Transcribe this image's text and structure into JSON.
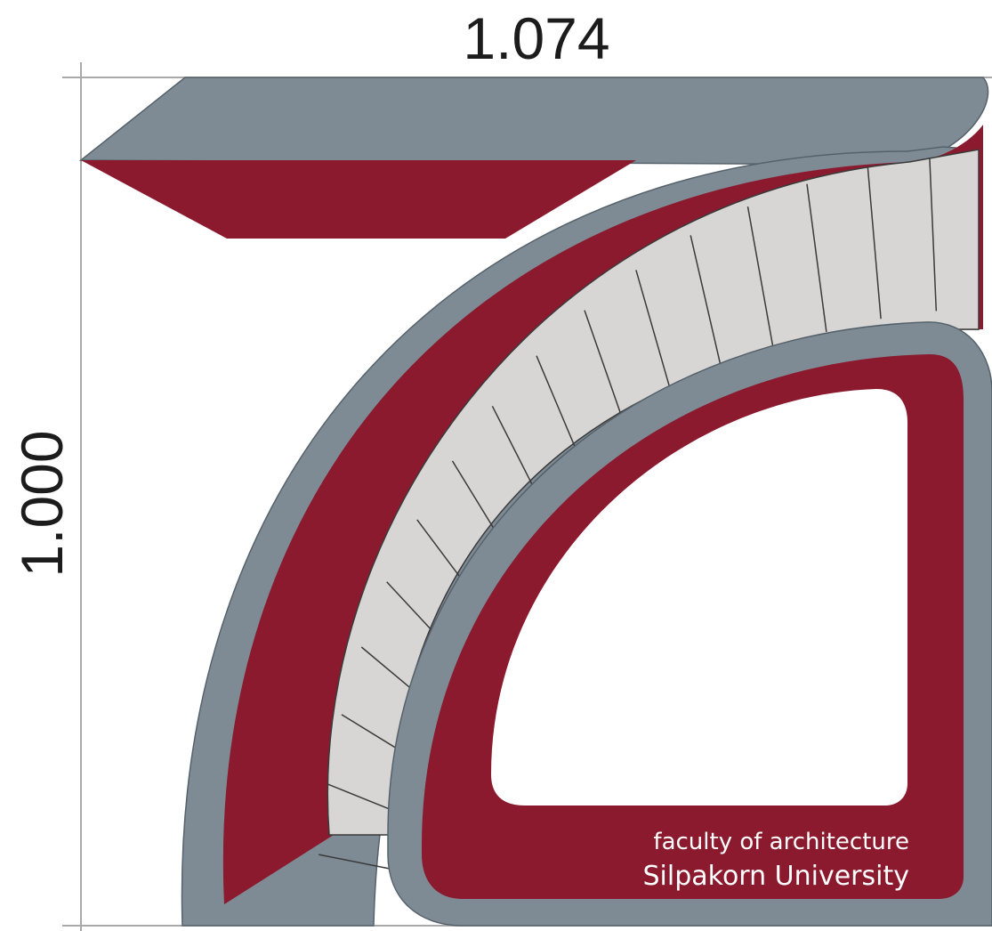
{
  "dimensions": {
    "width_label": "1.074",
    "height_label": "1.000"
  },
  "logo": {
    "line1": "faculty of architecture",
    "line2": "Silpakorn University",
    "stone_count": 17
  },
  "colors": {
    "grey": "#7f8b94",
    "grey_dark": "#56626b",
    "red": "#8b1a2e",
    "stone": "#d7d6d4",
    "stone_line": "#3a3a3a",
    "dim_line": "#a9a9a9",
    "text_dark": "#1c1c1c",
    "text_light": "#ffffff"
  }
}
